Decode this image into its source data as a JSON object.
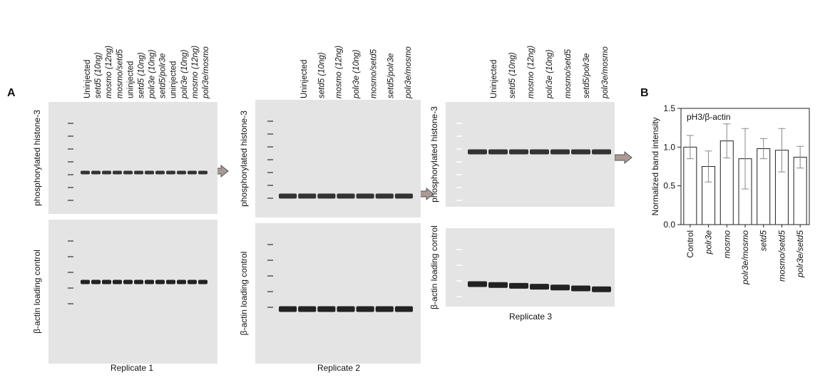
{
  "panel_a": {
    "letter": "A",
    "replicates": [
      {
        "label": "Replicate 1",
        "top_blot_label": "phosphorylated histone-3",
        "bottom_blot_label": "β-actin loading control",
        "lanes": [
          "Uninjected",
          "setd5 (10ng)",
          "mosmo (12ng)",
          "mosmo/setd5",
          "uninjected",
          "setd5 (10ng)",
          "polr3e (10ng)",
          "setd5/polr3e",
          "uninjected",
          "polr3e (10ng)",
          "mosmo (12ng)",
          "polr3e/mosmo"
        ]
      },
      {
        "label": "Replicate 2",
        "top_blot_label": "phosphorylated histone-3",
        "bottom_blot_label": "β-actin loading control",
        "lanes": [
          "Uninjected",
          "setd5 (10ng)",
          "mosmo (12ng)",
          "polr3e (10ng)",
          "mosmo/setd5",
          "setd5/polr3e",
          "polr3e/mosmo"
        ]
      },
      {
        "label": "Replicate 3",
        "top_blot_label": "phosphorylated histone-3",
        "bottom_blot_label": "β-actin loading control",
        "lanes": [
          "Uninjected",
          "setd5 (10ng)",
          "mosmo (12ng)",
          "polr3e (10ng)",
          "mosmo/setd5",
          "setd5/polr3e",
          "polr3e/mosmo"
        ]
      }
    ]
  },
  "chart_data": {
    "type": "bar",
    "letter": "B",
    "annotation": "pH3/β-actin",
    "y_label": "Normalized band intensity",
    "categories": [
      "Control",
      "polr3e",
      "mosmo",
      "polr3e/mosmo",
      "setd5",
      "mosmo/setd5",
      "polr3e/setd5"
    ],
    "values": [
      1.0,
      0.75,
      1.08,
      0.85,
      0.98,
      0.96,
      0.87
    ],
    "errors": [
      0.15,
      0.2,
      0.22,
      0.39,
      0.13,
      0.28,
      0.14
    ],
    "color": "#ffffff",
    "ylim": [
      0,
      1.5
    ],
    "yticks": [
      {
        "value": 0,
        "label": "0.0"
      },
      {
        "value": 0.5,
        "label": "0.5"
      },
      {
        "value": 1,
        "label": "1.0"
      },
      {
        "value": 1.5,
        "label": "1.5"
      }
    ]
  }
}
